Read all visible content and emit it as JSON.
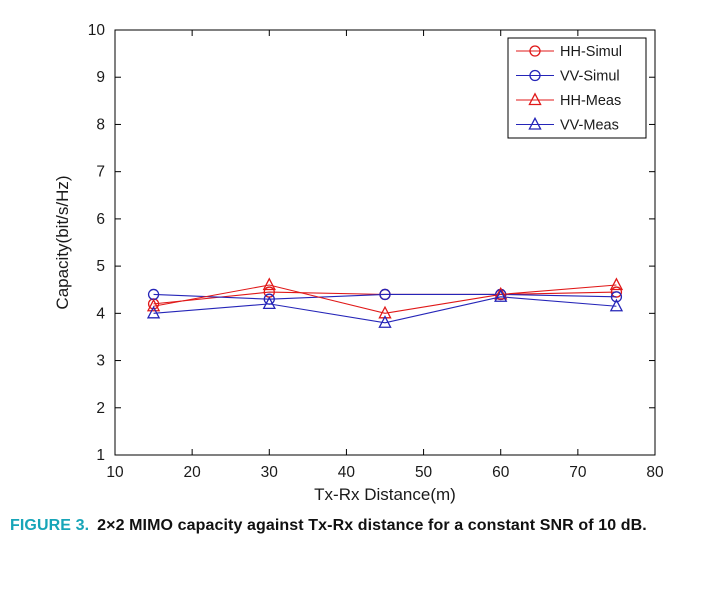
{
  "figure": {
    "caption_label": "FIGURE 3.",
    "caption_text": "2×2 MIMO capacity against Tx-Rx distance for a constant SNR of 10 dB.",
    "caption_label_color": "#17a5b8"
  },
  "chart_data": {
    "type": "line",
    "title": "",
    "xlabel": "Tx-Rx Distance(m)",
    "ylabel": "Capacity(bit/s/Hz)",
    "xlim": [
      10,
      80
    ],
    "ylim": [
      1,
      10
    ],
    "xticks": [
      10,
      20,
      30,
      40,
      50,
      60,
      70,
      80
    ],
    "yticks": [
      1,
      2,
      3,
      4,
      5,
      6,
      7,
      8,
      9,
      10
    ],
    "grid": false,
    "legend_position": "top-right",
    "x": [
      15,
      30,
      45,
      60,
      75
    ],
    "series": [
      {
        "name": "HH-Simul",
        "marker": "circle",
        "color": "#e01818",
        "values": [
          4.2,
          4.45,
          4.4,
          4.4,
          4.45
        ]
      },
      {
        "name": "VV-Simul",
        "marker": "circle",
        "color": "#2525b8",
        "values": [
          4.4,
          4.3,
          4.4,
          4.4,
          4.35
        ]
      },
      {
        "name": "HH-Meas",
        "marker": "triangle",
        "color": "#e01818",
        "values": [
          4.15,
          4.6,
          4.0,
          4.4,
          4.6
        ]
      },
      {
        "name": "VV-Meas",
        "marker": "triangle",
        "color": "#2525b8",
        "values": [
          4.0,
          4.2,
          3.8,
          4.35,
          4.15
        ]
      }
    ],
    "axis_color": "#000000",
    "tick_label_color": "#1a1a1a"
  }
}
